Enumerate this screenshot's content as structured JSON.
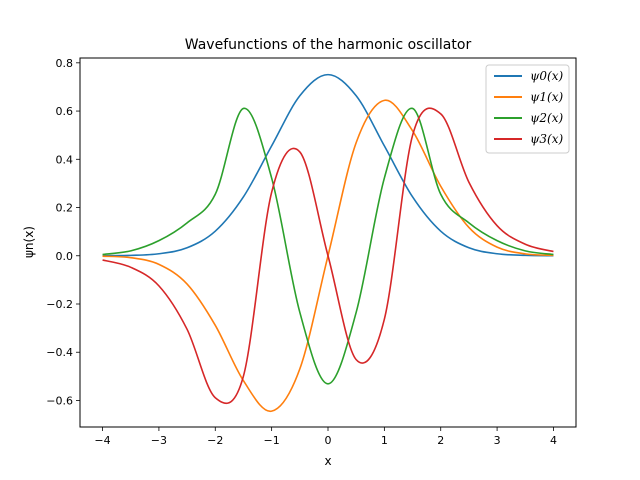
{
  "chart_data": {
    "type": "line",
    "title": "Wavefunctions of the harmonic oscillator",
    "xlabel": "x",
    "ylabel": "ψn(x)",
    "xlim": [
      -4.4,
      4.4
    ],
    "ylim": [
      -0.71,
      0.82
    ],
    "xticks": [
      -4,
      -3,
      -2,
      -1,
      0,
      1,
      2,
      3,
      4
    ],
    "xtick_labels": [
      "−4",
      "−3",
      "−2",
      "−1",
      "0",
      "1",
      "2",
      "3",
      "4"
    ],
    "yticks": [
      -0.6,
      -0.4,
      -0.2,
      0.0,
      0.2,
      0.4,
      0.6,
      0.8
    ],
    "ytick_labels": [
      "−0.6",
      "−0.4",
      "−0.2",
      "0.0",
      "0.2",
      "0.4",
      "0.6",
      "0.8"
    ],
    "grid": false,
    "legend_position": "top-right",
    "x": [
      -4.0,
      -3.5,
      -3.0,
      -2.5,
      -2.0,
      -1.5,
      -1.0,
      -0.5,
      0.0,
      0.5,
      1.0,
      1.5,
      2.0,
      2.5,
      3.0,
      3.5,
      4.0
    ],
    "series": [
      {
        "name": "ψ0(x)",
        "color": "#1f77b4",
        "values": [
          0.0003,
          0.0016,
          0.0084,
          0.0332,
          0.1019,
          0.2443,
          0.4556,
          0.6633,
          0.7511,
          0.6633,
          0.4556,
          0.2443,
          0.1019,
          0.0332,
          0.0084,
          0.0016,
          0.0003
        ]
      },
      {
        "name": "ψ1(x)",
        "color": "#ff7f0e",
        "values": [
          -0.0019,
          -0.0079,
          -0.0357,
          -0.1173,
          -0.2883,
          -0.5182,
          -0.6443,
          -0.469,
          0.0,
          0.469,
          0.6443,
          0.5182,
          0.2883,
          0.1173,
          0.0357,
          0.0079,
          0.0019
        ]
      },
      {
        "name": "ψ2(x)",
        "color": "#2ca02c",
        "values": [
          0.0053,
          0.0203,
          0.0627,
          0.1365,
          0.255,
          0.6108,
          0.3222,
          -0.2345,
          -0.5311,
          -0.2345,
          0.3222,
          0.6108,
          0.255,
          0.1365,
          0.0627,
          0.0203,
          0.0053
        ]
      },
      {
        "name": "ψ3(x)",
        "color": "#d62728",
        "values": [
          -0.0176,
          -0.0478,
          -0.1248,
          -0.305,
          -0.5885,
          -0.4988,
          0.263,
          0.4306,
          0.0,
          -0.4306,
          -0.263,
          0.4988,
          0.5885,
          0.305,
          0.1248,
          0.0478,
          0.0176
        ]
      }
    ]
  }
}
